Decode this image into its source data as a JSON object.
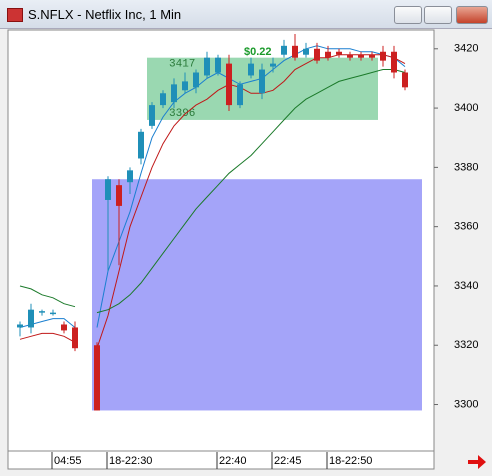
{
  "window": {
    "title": "S.NFLX - Netflix Inc, 1 Min"
  },
  "chart_data": {
    "type": "candlestick",
    "categories": [
      null,
      null,
      null,
      "04:55",
      null,
      null,
      null,
      null,
      "18-22:30",
      null,
      null,
      null,
      null,
      null,
      null,
      null,
      null,
      null,
      "22:40",
      null,
      null,
      null,
      null,
      "22:45",
      null,
      null,
      null,
      null,
      "18-22:50",
      null,
      null,
      null,
      null,
      null,
      null,
      null
    ],
    "open": [
      3326,
      3326,
      3331,
      3331,
      3327,
      3326,
      null,
      3320,
      3369,
      3374,
      3375,
      3383,
      3394,
      3401,
      3402,
      3406,
      3407,
      3411,
      3412,
      3415,
      3401,
      3411,
      3405,
      3414,
      3418,
      3421,
      3418,
      3420,
      3419,
      3419,
      3418,
      3418,
      3418,
      3419,
      3419,
      3412
    ],
    "high": [
      3328,
      3334,
      3332,
      3332,
      3328,
      3328,
      null,
      3321,
      3377,
      3376,
      3380,
      3393,
      3402,
      3406,
      3410,
      3412,
      3413,
      3419,
      3418,
      3418,
      3409,
      3417,
      3415,
      3417,
      3423,
      3425,
      3422,
      3422,
      3421,
      3420,
      3419,
      3419,
      3419,
      3421,
      3421,
      3413
    ],
    "low": [
      3323,
      3324,
      3330,
      3330,
      3324,
      3318,
      null,
      3298,
      3345,
      3347,
      3371,
      3381,
      3393,
      3400,
      3400,
      3405,
      3405,
      3410,
      3411,
      3399,
      3400,
      3410,
      3403,
      3412,
      3417,
      3416,
      3417,
      3415,
      3416,
      3417,
      3416,
      3416,
      3416,
      3414,
      3410,
      3406
    ],
    "close": [
      3327,
      3332,
      3331.5,
      3331,
      3325,
      3319,
      null,
      3298,
      3376,
      3367,
      3379,
      3392,
      3401,
      3405,
      3408,
      3409,
      3412,
      3417,
      3417,
      3401,
      3408,
      3415,
      3413,
      3415,
      3421,
      3417,
      3420,
      3416,
      3417,
      3418,
      3417,
      3417,
      3417,
      3416,
      3412,
      3407
    ],
    "up_color": "#1f8fb8",
    "down_color": "#cc2020",
    "series": [
      {
        "color": "#1a7fd0",
        "values": [
          3326,
          3327,
          3328,
          3329,
          3329,
          3326,
          null,
          3326,
          3345,
          3355,
          3365,
          3378,
          3390,
          3397,
          3402,
          3405,
          3407,
          3410,
          3412,
          3410,
          3408,
          3409,
          3410,
          3413,
          3416,
          3418,
          3420,
          3421,
          3420,
          3420,
          3420,
          3419,
          3419,
          3418,
          3417,
          3414
        ]
      },
      {
        "color": "#c01818",
        "values": [
          3322,
          3323,
          3324,
          3324,
          3323,
          3321,
          null,
          3319,
          3330,
          3345,
          3360,
          3370,
          3380,
          3388,
          3394,
          3398,
          3401,
          3403,
          3406,
          3408,
          3407,
          3405,
          3405,
          3406,
          3409,
          3413,
          3415,
          3417,
          3417,
          3418,
          3418,
          3418,
          3418,
          3418,
          3417,
          3415
        ]
      },
      {
        "color": "#1b7a2a",
        "values": [
          3340,
          3339,
          3337,
          3336,
          3334,
          3333,
          null,
          3331,
          3332,
          3334,
          3337,
          3341,
          3346,
          3351,
          3356,
          3361,
          3366,
          3370,
          3374,
          3378,
          3381,
          3384,
          3388,
          3392,
          3396,
          3400,
          3403,
          3405,
          3407,
          3409,
          3410,
          3411,
          3412,
          3413,
          3413,
          3412
        ]
      }
    ],
    "regions": [
      {
        "color": "#8fd4a8",
        "values": [
          3396,
          3417
        ],
        "value_labels": [
          "3396",
          "3417"
        ],
        "start": 12,
        "end": 33
      },
      {
        "color": "#9a9af8",
        "values": [
          3298,
          3376
        ],
        "start": 7,
        "end": 37
      }
    ],
    "annotation": "$0.22",
    "ylim": [
      3285,
      3426
    ],
    "yticks": [
      3300,
      3320,
      3340,
      3360,
      3380,
      3400,
      3420
    ]
  }
}
